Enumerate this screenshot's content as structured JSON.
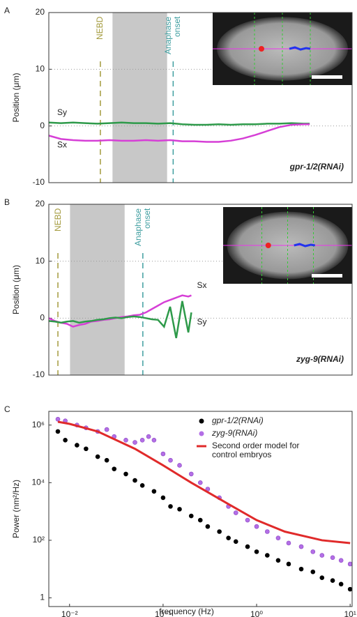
{
  "chart_data": [
    {
      "type": "line",
      "panel_label": "A",
      "ylabel": "Position (μm)",
      "annotation": "gpr-1/2(RNAi)",
      "x": [
        0,
        4,
        8,
        12,
        16,
        20,
        24,
        28,
        32,
        36,
        40,
        44,
        48,
        52,
        56,
        60,
        64,
        68,
        72,
        76,
        80,
        84,
        86
      ],
      "xlim": [
        0,
        100
      ],
      "ylim": [
        -10,
        20
      ],
      "yticks": [
        -10,
        0,
        10,
        20
      ],
      "grid": true,
      "series_label_position": "start",
      "shade": [
        21,
        39
      ],
      "events": [
        {
          "label": "NEBD",
          "x": 17,
          "color": "#a39a3c"
        },
        {
          "label": "Anaphase onset",
          "x": 41,
          "color": "#3f9ea0"
        }
      ],
      "series": [
        {
          "name": "Sy",
          "color": "#2e9a4a",
          "values": [
            0.6,
            0.5,
            0.6,
            0.5,
            0.4,
            0.5,
            0.6,
            0.5,
            0.5,
            0.4,
            0.5,
            0.3,
            0.2,
            0.2,
            0.3,
            0.2,
            0.3,
            0.3,
            0.4,
            0.4,
            0.5,
            0.4,
            0.4
          ]
        },
        {
          "name": "Sx",
          "color": "#d63fd6",
          "values": [
            -1.7,
            -2.3,
            -2.5,
            -2.6,
            -2.6,
            -2.5,
            -2.6,
            -2.6,
            -2.5,
            -2.6,
            -2.5,
            -2.7,
            -2.7,
            -2.8,
            -2.8,
            -2.6,
            -2.2,
            -1.6,
            -0.9,
            -0.2,
            0.2,
            0.3,
            0.3
          ]
        }
      ]
    },
    {
      "type": "line",
      "panel_label": "B",
      "ylabel": "Position (μm)",
      "annotation": "zyg-9(RNAi)",
      "x": [
        0,
        2,
        4,
        6,
        8,
        10,
        12,
        14,
        16,
        18,
        20,
        22,
        24,
        26,
        28,
        30,
        32,
        34,
        36,
        38,
        40,
        42,
        44,
        46,
        47
      ],
      "xlim": [
        0,
        100
      ],
      "ylim": [
        -10,
        20
      ],
      "yticks": [
        -10,
        0,
        10,
        20
      ],
      "grid": true,
      "series_label_position": "end",
      "shade": [
        7,
        25
      ],
      "events": [
        {
          "label": "NEBD",
          "x": 3,
          "color": "#a39a3c"
        },
        {
          "label": "Anaphase onset",
          "x": 31,
          "color": "#3f9ea0"
        }
      ],
      "series": [
        {
          "name": "Sx",
          "color": "#d63fd6",
          "values": [
            0,
            -0.5,
            -0.8,
            -1.0,
            -1.5,
            -1.2,
            -1.0,
            -0.6,
            -0.5,
            -0.3,
            -0.2,
            0,
            0.2,
            0.3,
            0.5,
            0.6,
            1.0,
            1.6,
            2.2,
            2.8,
            3.2,
            3.6,
            4.0,
            3.8,
            4.0
          ]
        },
        {
          "name": "Sy",
          "color": "#2e9a4a",
          "values": [
            -0.5,
            -0.6,
            -0.8,
            -0.6,
            -0.5,
            -0.8,
            -0.6,
            -0.5,
            -0.3,
            -0.2,
            0,
            0.1,
            0,
            0.2,
            0.3,
            0.2,
            0,
            -0.2,
            -0.3,
            -1.5,
            2.0,
            -3.5,
            3.0,
            -2.5,
            1.0
          ]
        }
      ]
    },
    {
      "type": "scatter",
      "panel_label": "C",
      "xlabel": "frequency (Hz)",
      "ylabel": "Power (nm²/Hz)",
      "log_x": true,
      "log_y": true,
      "xlim": [
        0.006,
        10.5
      ],
      "ylim": [
        0.5,
        3000000
      ],
      "legend": "upper right",
      "xticks": [
        {
          "value": 0.01,
          "label": "10⁻²"
        },
        {
          "value": 0.1,
          "label": "10⁻¹"
        },
        {
          "value": 1,
          "label": "10⁰"
        },
        {
          "value": 10,
          "label": "10¹"
        }
      ],
      "yticks": [
        1,
        {
          "value": 100,
          "label": "10²"
        },
        {
          "value": 10000,
          "label": "10⁴"
        },
        {
          "value": 1000000,
          "label": "10⁶"
        }
      ],
      "series": [
        {
          "name": "gpr-1/2(RNAi)",
          "kind": "scatter",
          "color": "#000000",
          "font_style": "italic",
          "x": [
            0.0075,
            0.009,
            0.012,
            0.015,
            0.02,
            0.025,
            0.03,
            0.04,
            0.05,
            0.06,
            0.08,
            0.1,
            0.12,
            0.15,
            0.2,
            0.25,
            0.3,
            0.4,
            0.5,
            0.6,
            0.8,
            1,
            1.3,
            1.7,
            2.2,
            3,
            4,
            5,
            6.5,
            8,
            10
          ],
          "values": [
            600000,
            300000,
            200000,
            150000,
            80000,
            60000,
            30000,
            20000,
            12000,
            8000,
            5000,
            3000,
            1500,
            1200,
            700,
            500,
            300,
            200,
            120,
            90,
            60,
            40,
            30,
            20,
            15,
            10,
            8,
            5,
            4,
            3,
            2
          ]
        },
        {
          "name": "zyg-9(RNAi)",
          "kind": "scatter",
          "color": "#b36ee6",
          "font_style": "italic",
          "x": [
            0.0075,
            0.009,
            0.012,
            0.015,
            0.02,
            0.025,
            0.03,
            0.04,
            0.05,
            0.06,
            0.07,
            0.08,
            0.1,
            0.12,
            0.15,
            0.2,
            0.25,
            0.3,
            0.4,
            0.5,
            0.6,
            0.8,
            1,
            1.3,
            1.7,
            2.2,
            3,
            4,
            5,
            6.5,
            8,
            10
          ],
          "values": [
            1600000,
            1400000,
            1000000,
            800000,
            600000,
            700000,
            400000,
            300000,
            250000,
            300000,
            400000,
            300000,
            100000,
            60000,
            40000,
            20000,
            10000,
            6000,
            3000,
            1500,
            900,
            500,
            300,
            200,
            120,
            80,
            60,
            40,
            30,
            25,
            20,
            15
          ]
        },
        {
          "name": "Second order model for control embryos",
          "kind": "line",
          "color": "#e02a2a",
          "font_style": "normal",
          "x": [
            0.0075,
            0.01,
            0.02,
            0.05,
            0.1,
            0.2,
            0.5,
            1,
            2,
            5,
            10
          ],
          "values": [
            1300000,
            1100000,
            600000,
            150000,
            40000,
            10000,
            1800,
            500,
            200,
            100,
            80
          ]
        }
      ]
    }
  ]
}
